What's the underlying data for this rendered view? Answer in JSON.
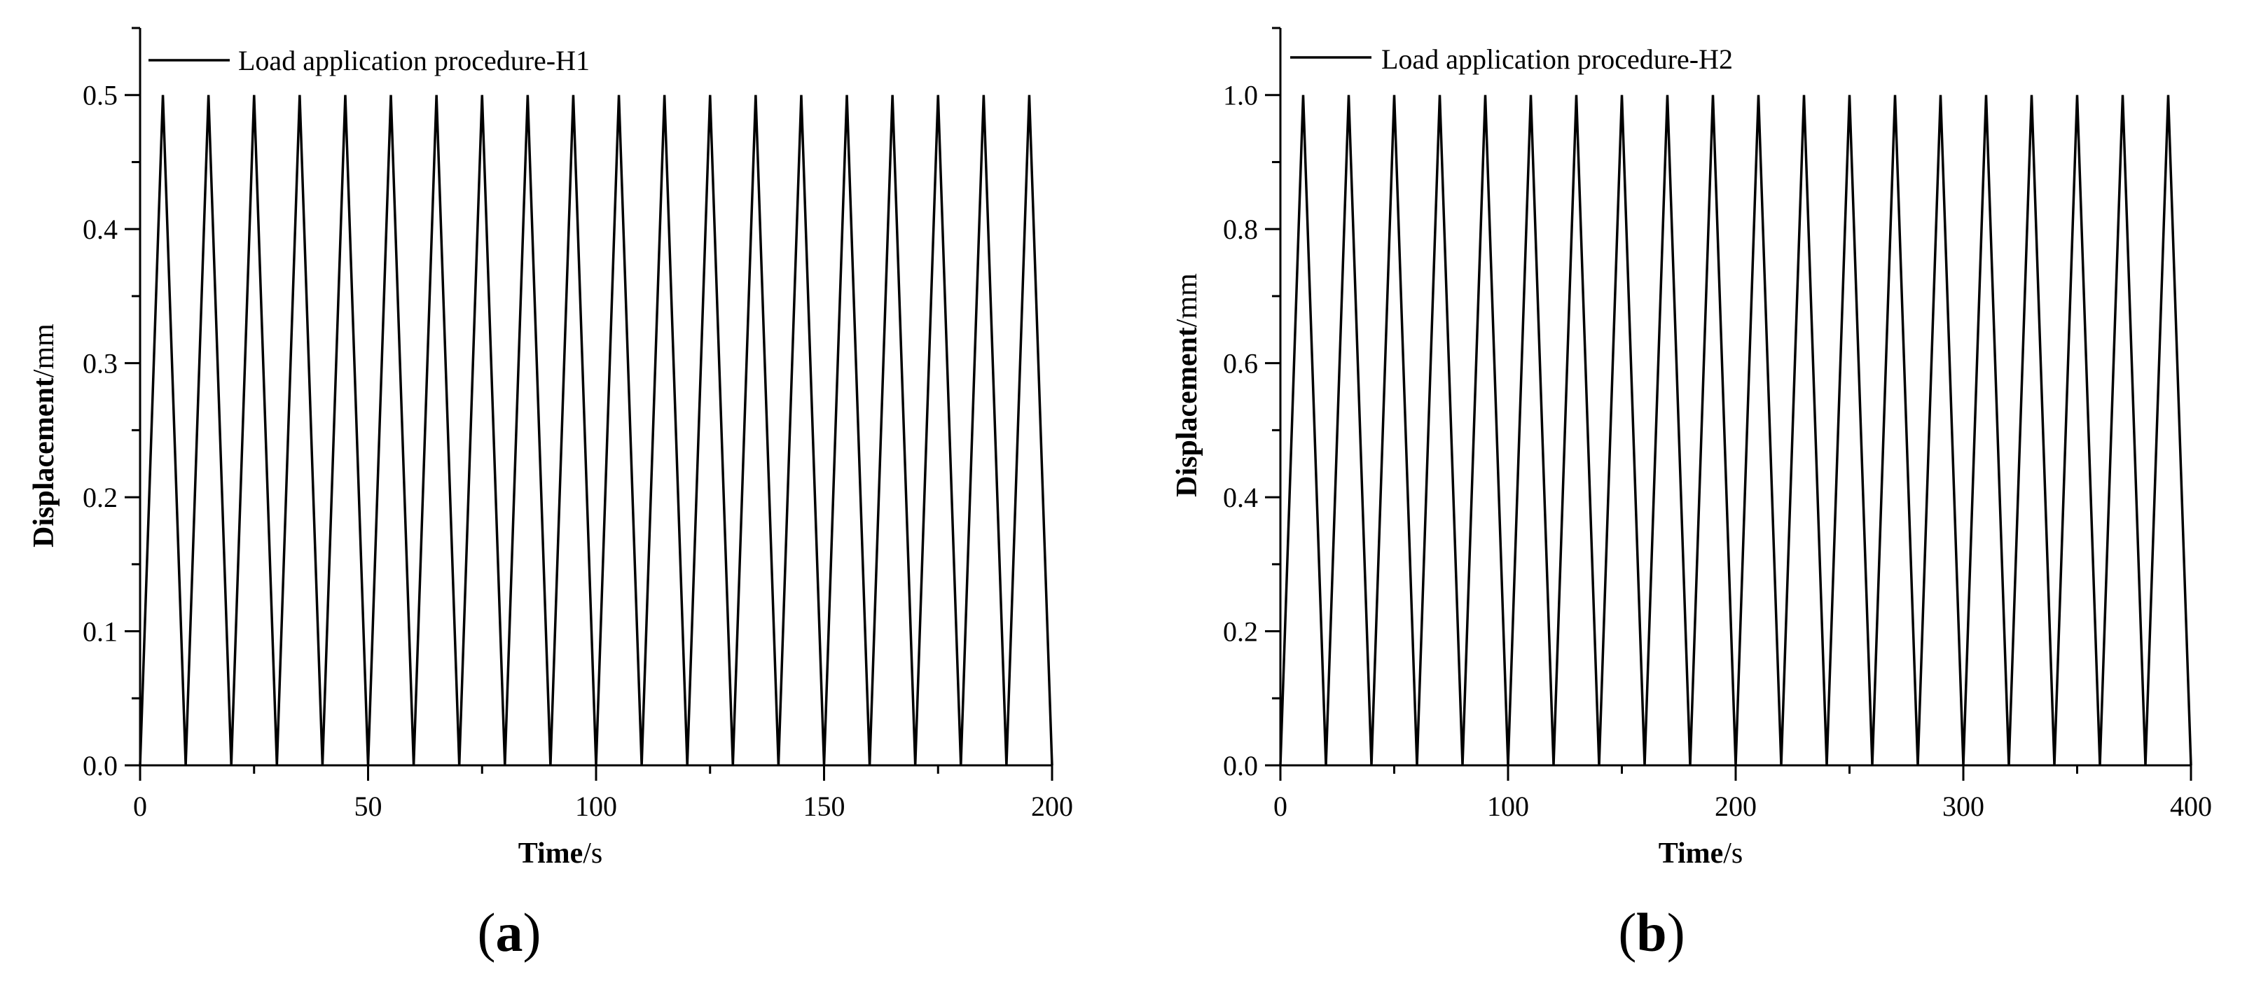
{
  "chart_data": [
    {
      "type": "line",
      "panel_label": "a",
      "xlabel": {
        "main": "Time",
        "unit": "/s"
      },
      "ylabel": {
        "main": "Displacement",
        "unit": "/mm"
      },
      "xlim": [
        0,
        200
      ],
      "ylim": [
        0,
        0.55
      ],
      "xticks": [
        0,
        50,
        100,
        150,
        200
      ],
      "xtick_labels": [
        "0",
        "50",
        "100",
        "150",
        "200"
      ],
      "yticks": [
        0.0,
        0.1,
        0.2,
        0.3,
        0.4,
        0.5
      ],
      "ytick_labels": [
        "0.0",
        "0.1",
        "0.2",
        "0.3",
        "0.4",
        "0.5"
      ],
      "grid": false,
      "legend_position": "top-left",
      "series": [
        {
          "name": "Load application procedure-H1",
          "color": "#000000",
          "x": [
            0,
            5,
            10,
            15,
            20,
            25,
            30,
            35,
            40,
            45,
            50,
            55,
            60,
            65,
            70,
            75,
            80,
            85,
            90,
            95,
            100,
            105,
            110,
            115,
            120,
            125,
            130,
            135,
            140,
            145,
            150,
            155,
            160,
            165,
            170,
            175,
            180,
            185,
            190,
            195,
            200
          ],
          "y": [
            0,
            0.5,
            0,
            0.5,
            0,
            0.5,
            0,
            0.5,
            0,
            0.5,
            0,
            0.5,
            0,
            0.5,
            0,
            0.5,
            0,
            0.5,
            0,
            0.5,
            0,
            0.5,
            0,
            0.5,
            0,
            0.5,
            0,
            0.5,
            0,
            0.5,
            0,
            0.5,
            0,
            0.5,
            0,
            0.5,
            0,
            0.5,
            0,
            0.5,
            0
          ]
        }
      ]
    },
    {
      "type": "line",
      "panel_label": "b",
      "xlabel": {
        "main": "Time",
        "unit": "/s"
      },
      "ylabel": {
        "main": "Displacement",
        "unit": "/mm"
      },
      "xlim": [
        0,
        400
      ],
      "ylim": [
        0,
        1.1
      ],
      "xticks": [
        0,
        100,
        200,
        300,
        400
      ],
      "xtick_labels": [
        "0",
        "100",
        "200",
        "300",
        "400"
      ],
      "yticks": [
        0.0,
        0.2,
        0.4,
        0.6,
        0.8,
        1.0
      ],
      "ytick_labels": [
        "0.0",
        "0.2",
        "0.4",
        "0.6",
        "0.8",
        "1.0"
      ],
      "grid": false,
      "legend_position": "top-left",
      "series": [
        {
          "name": "Load application procedure-H2",
          "color": "#000000",
          "x": [
            0,
            10,
            20,
            30,
            40,
            50,
            60,
            70,
            80,
            90,
            100,
            110,
            120,
            130,
            140,
            150,
            160,
            170,
            180,
            190,
            200,
            210,
            220,
            230,
            240,
            250,
            260,
            270,
            280,
            290,
            300,
            310,
            320,
            330,
            340,
            350,
            360,
            370,
            380,
            390,
            400
          ],
          "y": [
            0,
            1.0,
            0,
            1.0,
            0,
            1.0,
            0,
            1.0,
            0,
            1.0,
            0,
            1.0,
            0,
            1.0,
            0,
            1.0,
            0,
            1.0,
            0,
            1.0,
            0,
            1.0,
            0,
            1.0,
            0,
            1.0,
            0,
            1.0,
            0,
            1.0,
            0,
            1.0,
            0,
            1.0,
            0,
            1.0,
            0,
            1.0,
            0,
            1.0,
            0
          ]
        }
      ]
    }
  ]
}
